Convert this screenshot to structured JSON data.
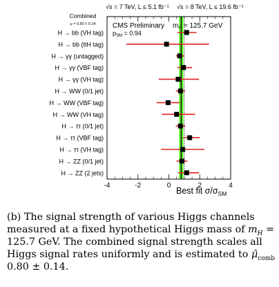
{
  "chart_data": {
    "type": "scatter",
    "header": {
      "left": "√s = 7 TeV, L ≤ 5.1 fb⁻¹",
      "right": "√s = 8 TeV, L ≤ 19.6 fb⁻¹"
    },
    "annotations": {
      "cms": "CMS Preliminary",
      "mass_main": "m",
      "mass_sub": "H",
      "mass_value": " = 125.7 GeV",
      "psm_main": "p",
      "psm_sub": "SM",
      "psm_value": " = 0.94"
    },
    "combined": {
      "label": "Combined",
      "text": "μ = 0.80 ± 0.14",
      "mu": 0.8,
      "err": 0.14
    },
    "xlabel_main": "Best fit σ/σ",
    "xlabel_sub": "SM",
    "xlim": [
      -4,
      4
    ],
    "xticks": [
      "-4",
      "-2",
      "0",
      "2",
      "4"
    ],
    "sm_line": 1,
    "categories": [
      "H → bb (VH tag)",
      "H → bb (ttH tag)",
      "H → γγ (untagged)",
      "H → γγ (VBF tag)",
      "H → γγ (VH tag)",
      "H → WW (0/1 jet)",
      "H → WW (VBF tag)",
      "H → WW (VH tag)",
      "H → ττ (0/1 jet)",
      "H → ττ (VBF tag)",
      "H → ττ (VH tag)",
      "H → ZZ (0/1 jet)",
      "H → ZZ (2 jets)"
    ],
    "values": [
      1.15,
      -0.15,
      0.7,
      0.95,
      0.6,
      0.75,
      -0.05,
      0.5,
      0.75,
      1.35,
      0.9,
      0.85,
      1.15
    ],
    "err_low": [
      0.6,
      2.6,
      0.25,
      0.4,
      1.25,
      0.3,
      0.75,
      0.95,
      0.3,
      0.45,
      1.4,
      0.35,
      0.55
    ],
    "err_high": [
      0.65,
      2.75,
      0.3,
      0.55,
      1.35,
      0.3,
      0.75,
      1.2,
      0.3,
      0.65,
      1.4,
      0.35,
      0.8
    ],
    "colors": {
      "band": "#66ff33",
      "combined_line": "#111111",
      "errorbar": "#e02020",
      "marker": "#000000"
    }
  },
  "caption": {
    "line1": "(b) The signal strength of various Higgs channels",
    "line2a": "measured at a fixed hypothetical Higgs mass of ",
    "line2_m": "m",
    "line2_sub": "H",
    "line2b": " =",
    "line3": "125.7 GeV.   The combined signal strength scales all",
    "line4a": "Higgs signal rates uniformly and is estimated to ",
    "line4_mu": "μ̂",
    "line4_sub": "comb",
    "line4b": " =",
    "line5": "0.80 ± 0.14."
  }
}
